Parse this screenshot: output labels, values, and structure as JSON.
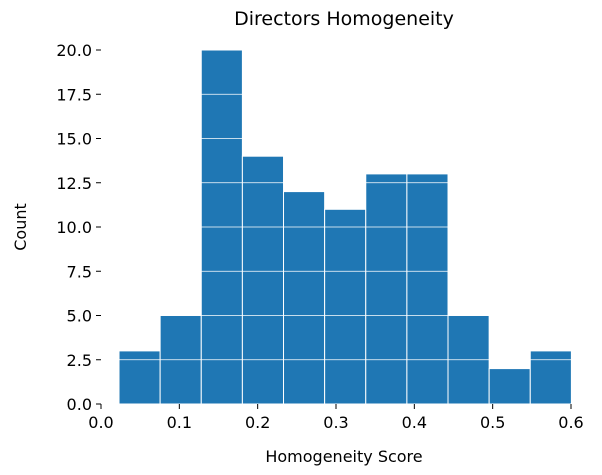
{
  "chart_data": {
    "type": "bar",
    "title": "Directors Homogeneity",
    "xlabel": "Homogeneity Score",
    "ylabel": "Count",
    "bin_edges": [
      0.023,
      0.0755,
      0.128,
      0.1805,
      0.233,
      0.2855,
      0.338,
      0.3905,
      0.443,
      0.4955,
      0.548,
      0.6005
    ],
    "values": [
      3,
      5,
      20,
      14,
      12,
      11,
      13,
      13,
      5,
      2,
      3
    ],
    "xlim": [
      0.0,
      0.6
    ],
    "ylim": [
      0.0,
      20.0
    ],
    "xticks": [
      "0.0",
      "0.1",
      "0.2",
      "0.3",
      "0.4",
      "0.5",
      "0.6"
    ],
    "xtick_values": [
      0.0,
      0.1,
      0.2,
      0.3,
      0.4,
      0.5,
      0.6
    ],
    "yticks": [
      "0.0",
      "2.5",
      "5.0",
      "7.5",
      "10.0",
      "12.5",
      "15.0",
      "17.5",
      "20.0"
    ],
    "ytick_values": [
      0.0,
      2.5,
      5.0,
      7.5,
      10.0,
      12.5,
      15.0,
      17.5,
      20.0
    ],
    "grid": "y",
    "bar_color": "#1f77b4",
    "edge_color": "#ffffff",
    "grid_color": "#ffffff"
  }
}
